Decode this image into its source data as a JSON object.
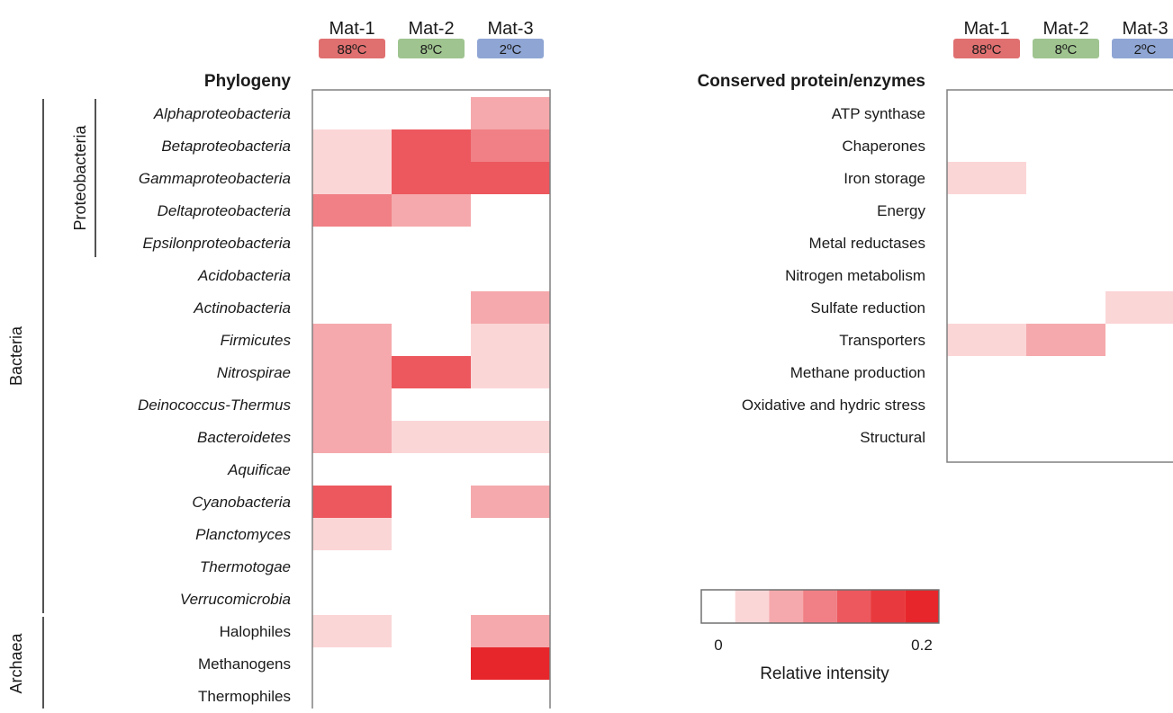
{
  "chart_data": [
    {
      "type": "heatmap",
      "title": "Phylogeny",
      "columns": [
        {
          "name": "Mat-1",
          "badge": "88ºC",
          "color": "#e07070"
        },
        {
          "name": "Mat-2",
          "badge": "8ºC",
          "color": "#9fc490"
        },
        {
          "name": "Mat-3",
          "badge": "2ºC",
          "color": "#8fa6d4"
        }
      ],
      "rows": [
        "Alphaproteobacteria",
        "Betaproteobacteria",
        "Gammaproteobacteria",
        "Deltaproteobacteria",
        "Epsilonproteobacteria",
        "Acidobacteria",
        "Actinobacteria",
        "Firmicutes",
        "Nitrospirae",
        "Deinococcus-Thermus",
        "Bacteroidetes",
        "Aquificae",
        "Cyanobacteria",
        "Planctomyces",
        "Thermotogae",
        "Verrucomicrobia",
        "Halophiles",
        "Methanogens",
        "Thermophiles"
      ],
      "italic_rows": 16,
      "values": [
        [
          0,
          0,
          0.055
        ],
        [
          0.025,
          0.14,
          0.095
        ],
        [
          0.015,
          0.12,
          0.12
        ],
        [
          0.09,
          0.075,
          0
        ],
        [
          0,
          0,
          0
        ],
        [
          0,
          0,
          0
        ],
        [
          0,
          0,
          0.075
        ],
        [
          0.05,
          0,
          0.01
        ],
        [
          0.06,
          0.14,
          0.04
        ],
        [
          0.06,
          0,
          0
        ],
        [
          0.06,
          0.035,
          0.035
        ],
        [
          0,
          0,
          0
        ],
        [
          0.14,
          0,
          0.05
        ],
        [
          0.025,
          0,
          0
        ],
        [
          0,
          0,
          0
        ],
        [
          0,
          0,
          0
        ],
        [
          0.03,
          0,
          0.06
        ],
        [
          0,
          0,
          0.2
        ],
        [
          0,
          0,
          0
        ]
      ],
      "groups": [
        {
          "label": "Proteobacteria",
          "from": 0,
          "to": 4
        },
        {
          "label": "Bacteria",
          "from": 0,
          "to": 15
        },
        {
          "label": "Archaea",
          "from": 16,
          "to": 18
        }
      ]
    },
    {
      "type": "heatmap",
      "title": "Conserved protein/enzymes",
      "columns": [
        {
          "name": "Mat-1",
          "badge": "88ºC",
          "color": "#e07070"
        },
        {
          "name": "Mat-2",
          "badge": "8ºC",
          "color": "#9fc490"
        },
        {
          "name": "Mat-3",
          "badge": "2ºC",
          "color": "#8fa6d4"
        }
      ],
      "rows": [
        "ATP synthase",
        "Chaperones",
        "Iron storage",
        "Energy",
        "Metal reductases",
        "Nitrogen metabolism",
        "Sulfate reduction",
        "Transporters",
        "Methane production",
        "Oxidative and hydric stress",
        "Structural"
      ],
      "values": [
        [
          0,
          0,
          0
        ],
        [
          0,
          0,
          0
        ],
        [
          0.03,
          0,
          0
        ],
        [
          0,
          0,
          0
        ],
        [
          0,
          0,
          0
        ],
        [
          0,
          0,
          0
        ],
        [
          0,
          0,
          0.045
        ],
        [
          0.025,
          0.05,
          0
        ],
        [
          0,
          0,
          0
        ],
        [
          0,
          0,
          0
        ],
        [
          0,
          0,
          0
        ]
      ]
    }
  ],
  "legend": {
    "title": "Relative intensity",
    "min_label": "0",
    "max_label": "0.2",
    "min": 0,
    "max": 0.2,
    "swatches": [
      "#ffffff",
      "#fbd6d7",
      "#f5a9ac",
      "#f08085",
      "#ec585e",
      "#e83a3e",
      "#e6262b"
    ]
  }
}
